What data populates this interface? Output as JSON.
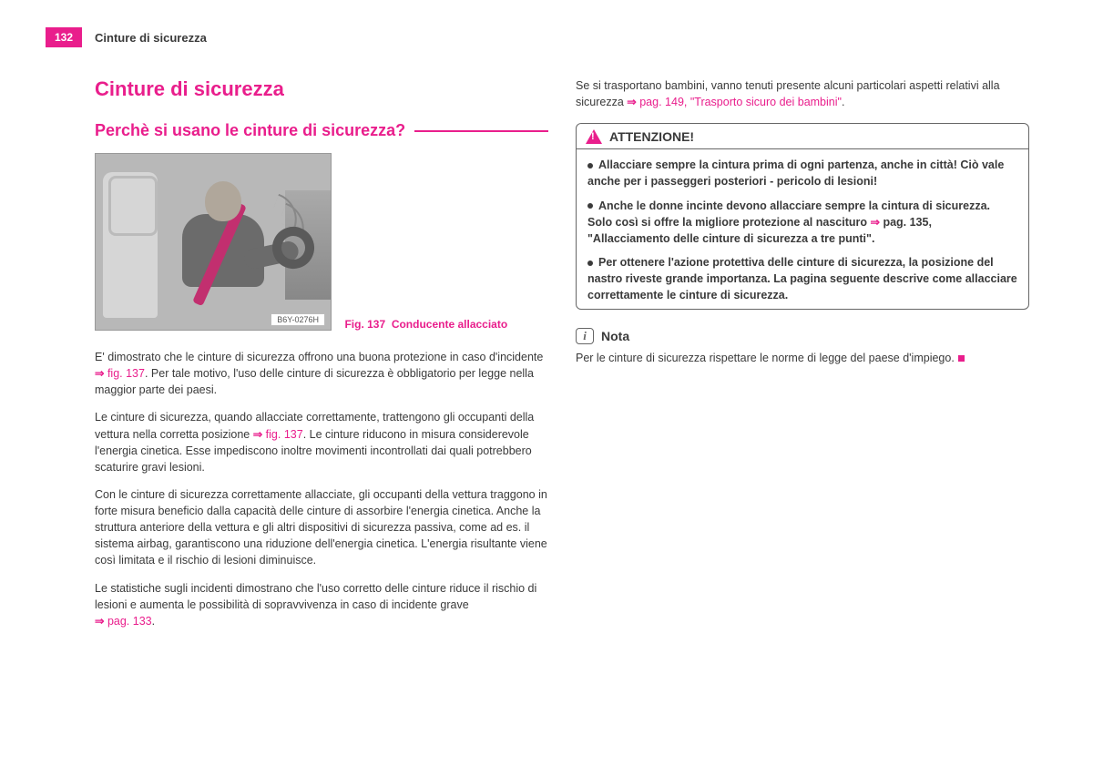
{
  "page": {
    "number": "132",
    "header": "Cinture di sicurezza"
  },
  "title": "Cinture di sicurezza",
  "subtitle": "Perchè si usano le cinture di sicurezza?",
  "figure": {
    "label": "B6Y-0276H",
    "caption_prefix": "Fig. 137",
    "caption": "Conducente allacciato"
  },
  "left": {
    "p1a": "E' dimostrato che le cinture di sicurezza offrono una buona protezione in caso d'incidente ",
    "p1_ref": "fig. 137",
    "p1b": ". Per tale motivo, l'uso delle cinture di sicurezza è obbligatorio per legge nella maggior parte dei paesi.",
    "p2a": "Le cinture di sicurezza, quando allacciate correttamente, trattengono gli occupanti della vettura nella corretta posizione ",
    "p2_ref": "fig. 137",
    "p2b": ". Le cinture riducono in misura considerevole l'energia cinetica. Esse impediscono inoltre movimenti incontrollati dai quali potrebbero scaturire gravi lesioni.",
    "p3": "Con le cinture di sicurezza correttamente allacciate, gli occupanti della vettura traggono in forte misura beneficio dalla capacità delle cinture di assorbire l'energia cinetica. Anche la struttura anteriore della vettura e gli altri dispositivi di sicurezza passiva, come ad es. il sistema airbag, garantiscono una riduzione dell'energia cinetica. L'energia risultante viene così limitata e il rischio di lesioni diminuisce.",
    "p4a": "Le statistiche sugli incidenti dimostrano che l'uso corretto delle cinture riduce il rischio di lesioni e aumenta le possibilità di sopravvivenza in caso di incidente grave ",
    "p4_ref": "pag. 133",
    "p4b": "."
  },
  "right": {
    "intro_a": "Se si trasportano bambini, vanno tenuti presente alcuni particolari aspetti relativi alla sicurezza ",
    "intro_ref": "pag. 149, \"Trasporto sicuro dei bambini\"",
    "intro_b": ".",
    "warn_title": "ATTENZIONE!",
    "w1": "Allacciare sempre la cintura prima di ogni partenza, anche in città! Ciò vale anche per i passeggeri posteriori - pericolo di lesioni!",
    "w2a": "Anche le donne incinte devono allacciare sempre la cintura di sicurezza. Solo così si offre la migliore protezione al nascituro ",
    "w2_ref": "pag. 135, \"Allacciamento delle cinture di sicurezza a tre punti\"",
    "w2b": ".",
    "w3": "Per ottenere l'azione protettiva delle cinture di sicurezza, la posizione del nastro riveste grande importanza. La pagina seguente descrive come allacciare correttamente le cinture di sicurezza.",
    "note_title": "Nota",
    "note_text": "Per le cinture di sicurezza rispettare le norme di legge del paese d'impiego."
  },
  "colors": {
    "accent": "#e91e8c",
    "text": "#3a3a3a",
    "border": "#666666"
  }
}
